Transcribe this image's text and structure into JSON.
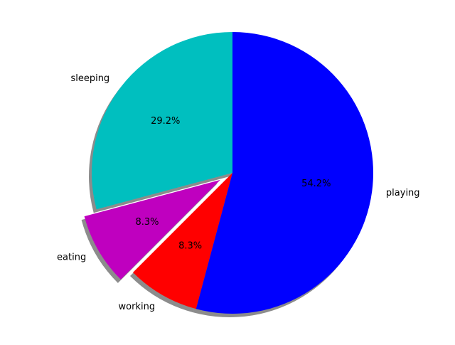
{
  "chart_data": {
    "type": "pie",
    "slices": [
      {
        "label": "sleeping",
        "value": 7,
        "pct_label": "29.2%",
        "color": "#00bfbf",
        "explode": false
      },
      {
        "label": "eating",
        "value": 2,
        "pct_label": "8.3%",
        "color": "#bf00bf",
        "explode": true
      },
      {
        "label": "working",
        "value": 2,
        "pct_label": "8.3%",
        "color": "#ff0000",
        "explode": false
      },
      {
        "label": "playing",
        "value": 13,
        "pct_label": "54.2%",
        "color": "#0000ff",
        "explode": false
      }
    ],
    "start_angle_deg": 90,
    "direction": "counterclockwise",
    "shadow": true,
    "title": ""
  }
}
